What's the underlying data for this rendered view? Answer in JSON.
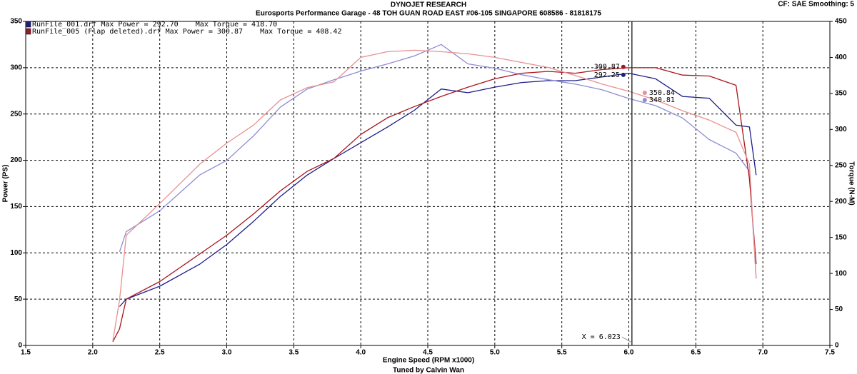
{
  "chart_data": {
    "type": "line",
    "title": "DYNOJET RESEARCH",
    "subtitle": "Eurosports Performance Garage - 48 TOH GUAN ROAD EAST #06-105 SINGAPORE 608586 - 81818175",
    "settings_label": "CF: SAE  Smoothing: 5",
    "xlabel": "Engine Speed (RPM x1000)",
    "ylabel": "Power (PS)",
    "y2label": "Torque (N-M)",
    "footer": "Tuned by Calvin Wan",
    "x": [
      2.15,
      2.2,
      2.25,
      2.5,
      2.8,
      3.0,
      3.2,
      3.4,
      3.6,
      3.8,
      4.0,
      4.2,
      4.4,
      4.6,
      4.8,
      5.0,
      5.2,
      5.4,
      5.6,
      5.8,
      6.0,
      6.2,
      6.4,
      6.6,
      6.8,
      6.9,
      6.95
    ],
    "series": [
      {
        "name": "RunFile_001.drf Max Power = 292.70    Max Torque = 418.70",
        "color": "#1c1c8a",
        "cursor_value": 292.25,
        "values": [
          null,
          42,
          50,
          64,
          88,
          109,
          134,
          161,
          184,
          202,
          219,
          236,
          254,
          277,
          273,
          279,
          284,
          286,
          286,
          290,
          294,
          288,
          269,
          267,
          238,
          236,
          184
        ]
      },
      {
        "color": "#8c8cd6",
        "axis": "y2",
        "cursor_value": 340.81,
        "values": [
          null,
          130,
          158,
          187,
          237,
          257,
          291,
          331,
          356,
          369,
          381,
          391,
          402,
          418,
          391,
          385,
          376,
          369,
          363,
          355,
          343,
          333,
          316,
          286,
          267,
          242,
          93
        ]
      },
      {
        "name": "RunFile_005 (Flap deleted).drf Max Power = 300.87    Max Torque = 408.42",
        "color": "#a8141c",
        "cursor_value": 300.87,
        "values": [
          4,
          18,
          50,
          69,
          99,
          119,
          142,
          167,
          188,
          202,
          228,
          246,
          258,
          269,
          279,
          288,
          294,
          296,
          294,
          298,
          300,
          300,
          292,
          291,
          281,
          180,
          88
        ]
      },
      {
        "color": "#e89090",
        "axis": "y2",
        "cursor_value": 350.84,
        "values": [
          6,
          63,
          153,
          197,
          252,
          281,
          306,
          341,
          358,
          366,
          400,
          408,
          410,
          408,
          405,
          400,
          393,
          386,
          375,
          363,
          353,
          341,
          326,
          313,
          296,
          252,
          93
        ]
      }
    ],
    "cursor": {
      "value": 6.023,
      "label": "X = 6.023"
    },
    "xlim": [
      1.5,
      7.5
    ],
    "xticks": [
      1.5,
      {
        "value": 2.0,
        "label": "2.0"
      },
      2.5,
      {
        "value": 3.0,
        "label": "3.0"
      },
      3.5,
      {
        "value": 4.0,
        "label": "4.0"
      },
      4.5,
      {
        "value": 5.0,
        "label": "5.0"
      },
      5.5,
      {
        "value": 6.0,
        "label": "6.0"
      },
      6.5,
      {
        "value": 7.0,
        "label": "7.0"
      },
      7.5
    ],
    "ylim": [
      0,
      350
    ],
    "yticks": [
      0,
      50,
      100,
      150,
      200,
      250,
      300,
      350
    ],
    "y2lim": [
      0,
      450
    ],
    "y2ticks": [
      0,
      50,
      100,
      150,
      200,
      250,
      300,
      350,
      400,
      450
    ],
    "grid": true
  }
}
